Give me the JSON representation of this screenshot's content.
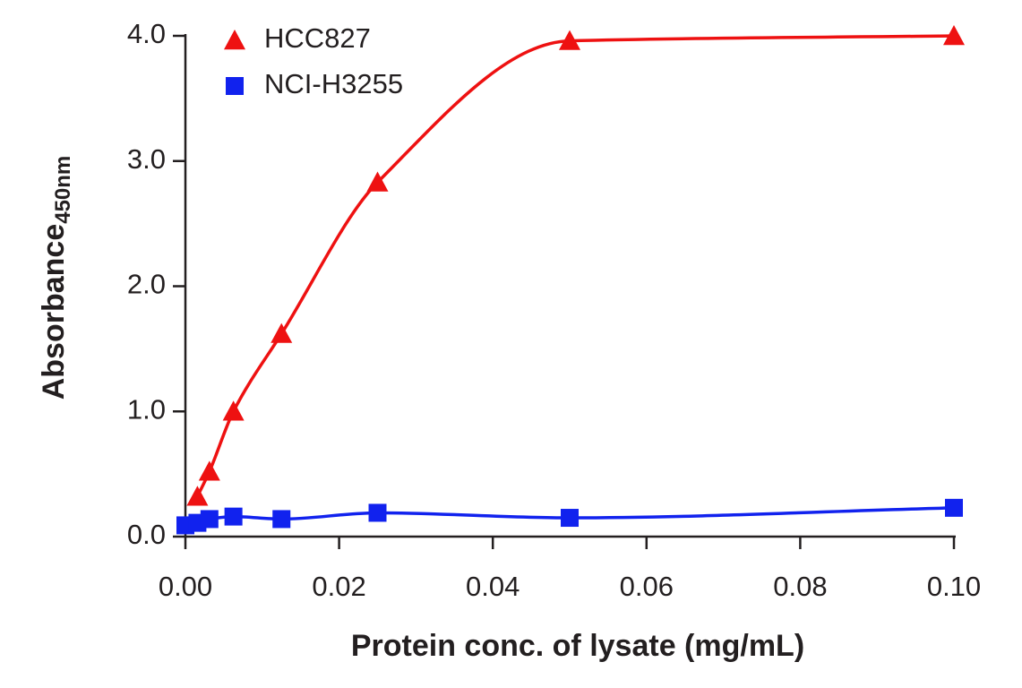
{
  "chart_data": {
    "type": "scatter",
    "x_label": "Protein conc. of lysate (mg/mL)",
    "y_label": "Absorbance",
    "y_label_sub": "450nm",
    "x": [
      0,
      0.0015625,
      0.003125,
      0.00625,
      0.0125,
      0.025,
      0.05,
      0.1
    ],
    "series": [
      {
        "name": "HCC827",
        "color": "#ee1111",
        "marker": "triangle",
        "values": [
          null,
          0.32,
          0.52,
          1.0,
          1.62,
          2.83,
          3.96,
          4.0
        ]
      },
      {
        "name": "NCI-H3255",
        "color": "#1122ee",
        "marker": "square",
        "values": [
          0.09,
          0.11,
          0.14,
          0.16,
          0.14,
          0.19,
          0.15,
          0.23
        ]
      }
    ],
    "xlim": [
      0,
      0.1
    ],
    "ylim": [
      0,
      4.0
    ],
    "xticks": [
      {
        "value": 0,
        "label": "0.00"
      },
      {
        "value": 0.02,
        "label": "0.02"
      },
      {
        "value": 0.04,
        "label": "0.04"
      },
      {
        "value": 0.06,
        "label": "0.06"
      },
      {
        "value": 0.08,
        "label": "0.08"
      },
      {
        "value": 0.1,
        "label": "0.10"
      }
    ],
    "yticks": [
      {
        "value": 0,
        "label": "0.0"
      },
      {
        "value": 1,
        "label": "1.0"
      },
      {
        "value": 2,
        "label": "2.0"
      },
      {
        "value": 3,
        "label": "3.0"
      },
      {
        "value": 4,
        "label": "4.0"
      }
    ],
    "legend": "top-left"
  }
}
